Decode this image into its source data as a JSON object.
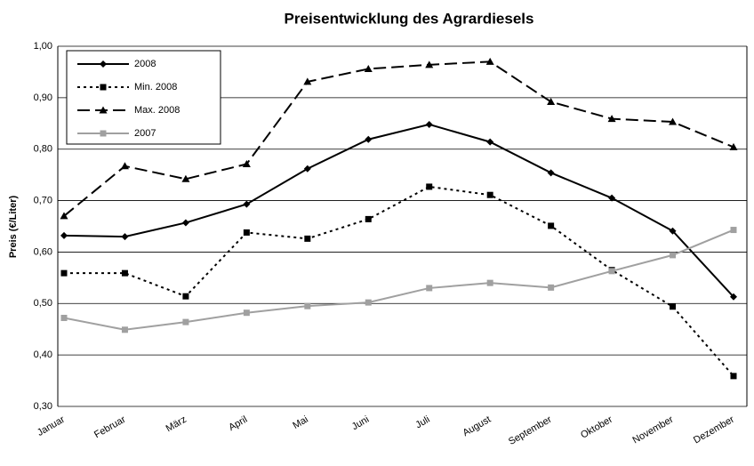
{
  "chart_data": {
    "type": "line",
    "title": "Preisentwicklung des Agrardiesels",
    "y_label": "Preis (€/Liter)",
    "categories": [
      "Januar",
      "Februar",
      "März",
      "April",
      "Mai",
      "Juni",
      "Juli",
      "August",
      "September",
      "Oktober",
      "November",
      "Dezember"
    ],
    "series": [
      {
        "name": "2008",
        "color": "#000000",
        "dash": "solid",
        "marker": "diamond",
        "values": [
          0.632,
          0.63,
          0.657,
          0.693,
          0.762,
          0.819,
          0.848,
          0.814,
          0.754,
          0.705,
          0.641,
          0.513
        ]
      },
      {
        "name": "Min. 2008",
        "color": "#000000",
        "dash": "dotted",
        "marker": "square",
        "values": [
          0.559,
          0.559,
          0.514,
          0.638,
          0.626,
          0.664,
          0.727,
          0.711,
          0.651,
          0.565,
          0.494,
          0.359
        ]
      },
      {
        "name": "Max. 2008",
        "color": "#000000",
        "dash": "dashed",
        "marker": "triangle",
        "values": [
          0.67,
          0.767,
          0.742,
          0.771,
          0.931,
          0.956,
          0.964,
          0.97,
          0.892,
          0.859,
          0.853,
          0.804
        ]
      },
      {
        "name": "2007",
        "color": "#a0a0a0",
        "dash": "solid",
        "marker": "square",
        "values": [
          0.472,
          0.449,
          0.464,
          0.482,
          0.495,
          0.502,
          0.53,
          0.54,
          0.531,
          0.563,
          0.594,
          0.643
        ]
      }
    ],
    "ylim": [
      0.3,
      1.0
    ],
    "yticks": [
      {
        "value": 0.3,
        "label": "0,30"
      },
      {
        "value": 0.4,
        "label": "0,40"
      },
      {
        "value": 0.5,
        "label": "0,50"
      },
      {
        "value": 0.6,
        "label": "0,60"
      },
      {
        "value": 0.7,
        "label": "0,70"
      },
      {
        "value": 0.8,
        "label": "0,80"
      },
      {
        "value": 0.9,
        "label": "0,90"
      },
      {
        "value": 1.0,
        "label": "1,00"
      }
    ],
    "grid": true,
    "legend": "upper left"
  }
}
